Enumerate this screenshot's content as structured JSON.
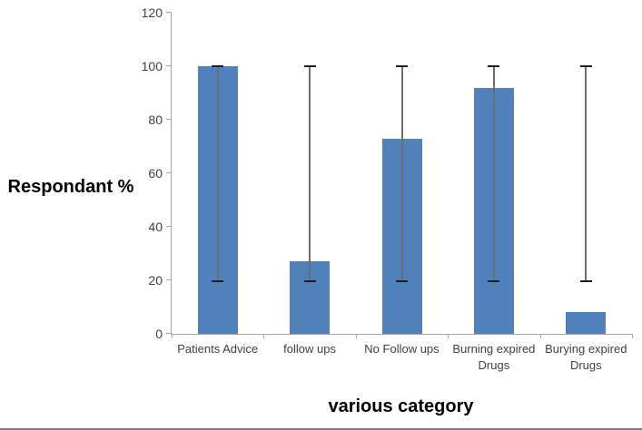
{
  "chart_data": {
    "type": "bar",
    "title": "",
    "categories": [
      "Patients Advice",
      "follow ups",
      "No Follow ups",
      "Burning expired Drugs",
      "Burying expired Drugs"
    ],
    "values": [
      100,
      27,
      73,
      92,
      8
    ],
    "error_bars": {
      "low": [
        19.5,
        19.5,
        19.5,
        19.5,
        19.5
      ],
      "high": [
        100,
        100,
        100,
        100,
        100
      ]
    },
    "xlabel": "various category",
    "ylabel": "Respondant %",
    "ylim": [
      0,
      120
    ],
    "yticks": [
      0,
      20,
      40,
      60,
      80,
      100,
      120
    ],
    "grid": false,
    "legend": "none",
    "colors": {
      "bar": "#4F81BD",
      "axis": "#A6A6A6",
      "error_line": "#6D6D6D",
      "error_cap": "#1F1F1F",
      "tick_text": "#3F3F3F",
      "title_text": "#000000",
      "page_border": "#7F7F7F"
    }
  }
}
